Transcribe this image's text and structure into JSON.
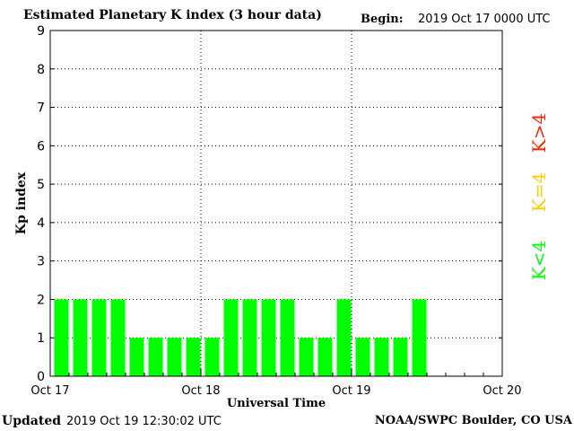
{
  "header": {
    "title": "Estimated Planetary K index (3 hour data)",
    "begin_label": "Begin:",
    "begin_value": "2019 Oct 17 0000 UTC"
  },
  "footer": {
    "updated_label": "Updated",
    "updated_value": "2019 Oct 19 12:30:02 UTC",
    "credit": "NOAA/SWPC Boulder, CO USA"
  },
  "colors": {
    "bar_below_4": "#00ff00",
    "k_equals_4": "#ffcc00",
    "k_above_4": "#ff2200"
  },
  "chart_data": {
    "type": "bar",
    "ylabel": "Kp index",
    "xlabel": "Universal Time",
    "ylim": [
      0,
      9
    ],
    "yticks": [
      "0",
      "1",
      "2",
      "3",
      "4",
      "5",
      "6",
      "7",
      "8",
      "9"
    ],
    "xticks": [
      "Oct 17",
      "Oct 18",
      "Oct 19",
      "Oct 20"
    ],
    "slots_total": 24,
    "values": [
      2,
      2,
      2,
      2,
      1,
      1,
      1,
      1,
      1,
      2,
      2,
      2,
      2,
      1,
      1,
      2,
      1,
      1,
      1,
      2
    ],
    "gridlines": true,
    "legend": [
      "K<4",
      "K=4",
      "K>4"
    ]
  }
}
